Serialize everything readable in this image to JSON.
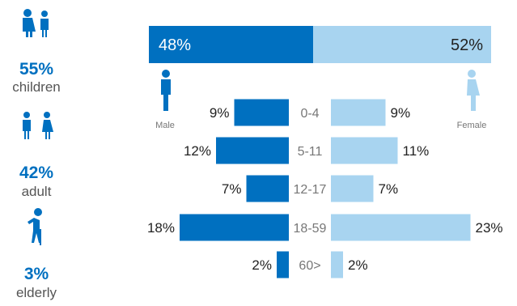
{
  "colors": {
    "male": "#0070c0",
    "female": "#a8d4f0",
    "accent": "#0070c0"
  },
  "groups": [
    {
      "pct": "55%",
      "label": "children",
      "icon": "children-icon"
    },
    {
      "pct": "42%",
      "label": "adult",
      "icon": "adults-icon"
    },
    {
      "pct": "3%",
      "label": "elderly",
      "icon": "elderly-icon"
    }
  ],
  "gender_split": {
    "male": "48%",
    "female": "52%"
  },
  "legend": {
    "male": "Male",
    "female": "Female"
  },
  "chart_data": {
    "type": "bar",
    "categories": [
      "0-4",
      "5-11",
      "12-17",
      "18-59",
      "60>"
    ],
    "series": [
      {
        "name": "Male",
        "values": [
          9,
          12,
          7,
          18,
          2
        ],
        "labels": [
          "9%",
          "12%",
          "7%",
          "18%",
          "2%"
        ]
      },
      {
        "name": "Female",
        "values": [
          9,
          11,
          7,
          23,
          2
        ],
        "labels": [
          "9%",
          "11%",
          "7%",
          "23%",
          "2%"
        ]
      }
    ],
    "split": {
      "male": 48,
      "female": 52
    }
  }
}
